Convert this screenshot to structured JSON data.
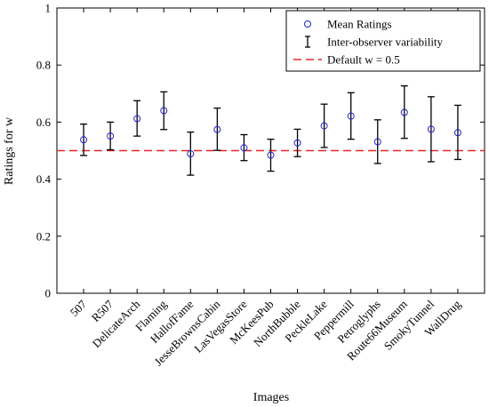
{
  "chart_data": {
    "type": "scatter",
    "title": "",
    "xlabel": "Images",
    "ylabel": "Ratings for w",
    "ylim": [
      0,
      1
    ],
    "yticks": [
      0,
      0.2,
      0.4,
      0.6,
      0.8,
      1
    ],
    "ytick_labels": [
      "0",
      "0.2",
      "0.4",
      "0.6",
      "0.8",
      "1"
    ],
    "grid": false,
    "legend_position": "top-right",
    "categories": [
      "507",
      "R507",
      "DelicateArch",
      "Flaming",
      "HallofFame",
      "JesseBrownsCabin",
      "LasVegasStore",
      "McKeesPub",
      "NorthBubble",
      "PeckleLake",
      "Peppermill",
      "Petroglyphs",
      "Route66Museum",
      "SmokyTunnel",
      "WallDrug"
    ],
    "series": [
      {
        "name": "Mean Ratings",
        "kind": "markers",
        "color": "#2222cc",
        "values": [
          0.538,
          0.551,
          0.612,
          0.64,
          0.489,
          0.574,
          0.51,
          0.484,
          0.527,
          0.587,
          0.621,
          0.531,
          0.634,
          0.575,
          0.563
        ]
      },
      {
        "name": "Inter-observer variability",
        "kind": "errorbar",
        "color": "#000000",
        "lower": [
          0.483,
          0.503,
          0.551,
          0.574,
          0.414,
          0.501,
          0.465,
          0.428,
          0.479,
          0.511,
          0.54,
          0.455,
          0.543,
          0.461,
          0.469
        ],
        "upper": [
          0.593,
          0.6,
          0.675,
          0.706,
          0.565,
          0.649,
          0.556,
          0.54,
          0.575,
          0.663,
          0.703,
          0.608,
          0.727,
          0.689,
          0.659
        ]
      }
    ],
    "reference_line": {
      "name": "Default w = 0.5",
      "value": 0.5,
      "color": "#e8262b",
      "style": "dashed"
    }
  }
}
